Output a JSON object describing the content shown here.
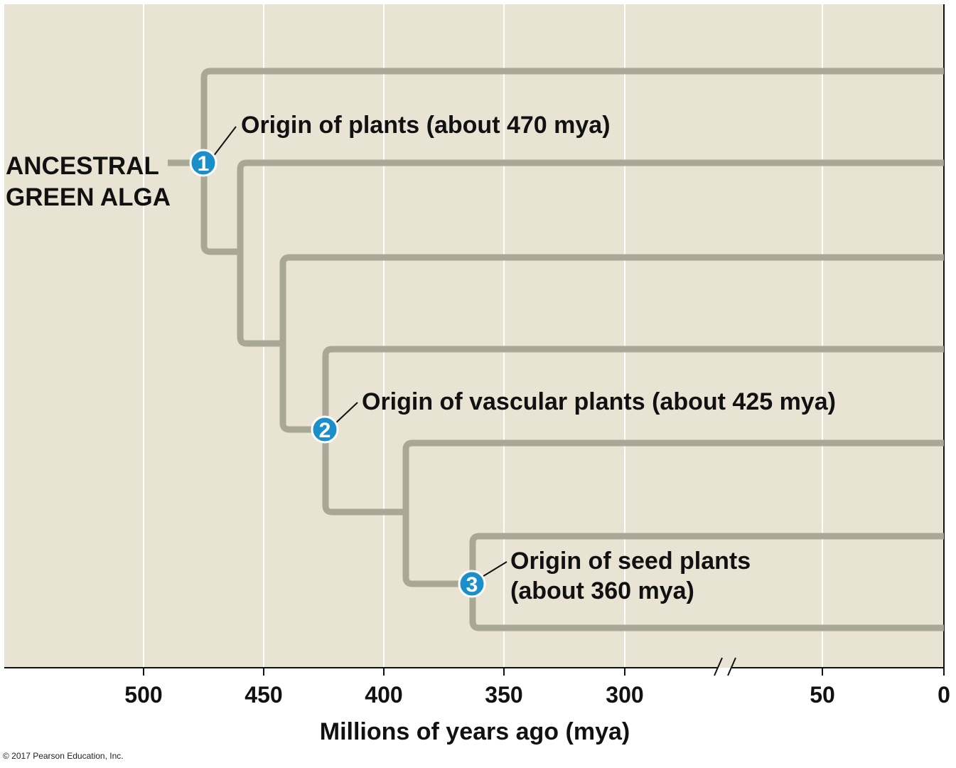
{
  "ancestor": {
    "line1": "ANCESTRAL",
    "line2": "GREEN ALGA"
  },
  "events": [
    {
      "number": "1",
      "label": "Origin of plants (about 470 mya)"
    },
    {
      "number": "2",
      "label": "Origin of vascular plants (about 425 mya)"
    },
    {
      "number": "3",
      "label_line1": "Origin of seed plants",
      "label_line2": "(about 360 mya)"
    }
  ],
  "axis": {
    "title": "Millions of years ago (mya)",
    "ticks": [
      "500",
      "450",
      "400",
      "350",
      "300",
      "50",
      "0"
    ],
    "break_mark": "/ /"
  },
  "copyright": "© 2017 Pearson Education, Inc.",
  "colors": {
    "background": "#e8e3d3",
    "branch": "#a9a796",
    "marker": "#1b8fc9",
    "gridline": "#ffffff",
    "text": "#111111"
  }
}
